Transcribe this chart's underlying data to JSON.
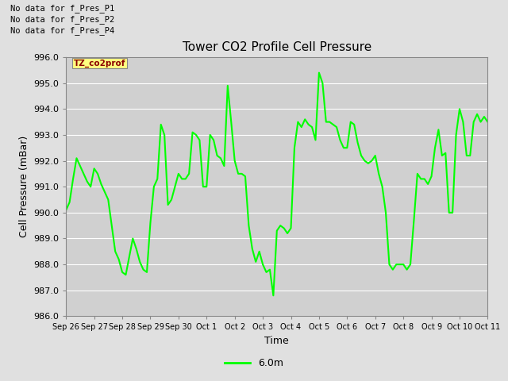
{
  "title": "Tower CO2 Profile Cell Pressure",
  "xlabel": "Time",
  "ylabel": "Cell Pressure (mBar)",
  "ylim": [
    986.0,
    996.0
  ],
  "yticks": [
    986.0,
    987.0,
    988.0,
    989.0,
    990.0,
    991.0,
    992.0,
    993.0,
    994.0,
    995.0,
    996.0
  ],
  "line_color": "#00FF00",
  "line_width": 1.5,
  "bg_color": "#E0E0E0",
  "plot_bg_color": "#D0D0D0",
  "legend_label": "6.0m",
  "annotations": [
    "No data for f_Pres_P1",
    "No data for f_Pres_P2",
    "No data for f_Pres_P4"
  ],
  "inset_label": "TZ_co2prof",
  "x_tick_labels": [
    "Sep 26",
    "Sep 27",
    "Sep 28",
    "Sep 29",
    "Sep 30",
    "Oct 1",
    "Oct 2",
    "Oct 3",
    "Oct 4",
    "Oct 5",
    "Oct 6",
    "Oct 7",
    "Oct 8",
    "Oct 9",
    "Oct 10",
    "Oct 11"
  ],
  "data_x": [
    0,
    0.5,
    1,
    1.5,
    2,
    2.5,
    3,
    3.5,
    4,
    4.5,
    5,
    5.5,
    6,
    6.5,
    7,
    7.5,
    8,
    8.5,
    9,
    9.5,
    10,
    10.5,
    11,
    11.5,
    12,
    12.5,
    13,
    13.5,
    14,
    14.5,
    15,
    15.5,
    16,
    16.5,
    17,
    17.5,
    18,
    18.5,
    19,
    19.5,
    20,
    20.5,
    21,
    21.5,
    22,
    22.5,
    23,
    23.5,
    24,
    24.5,
    25,
    25.5,
    26,
    26.5,
    27,
    27.5,
    28,
    28.5,
    29,
    29.5,
    30,
    30.5,
    31,
    31.5,
    32,
    32.5,
    33,
    33.5,
    34,
    34.5,
    35,
    35.5,
    36,
    36.5,
    37,
    37.5,
    38,
    38.5,
    39,
    39.5,
    40,
    40.5,
    41,
    41.5,
    42,
    42.5,
    43,
    43.5,
    44,
    44.5,
    45,
    45.5,
    46,
    46.5,
    47,
    47.5,
    48,
    48.5,
    49,
    49.5,
    50,
    50.5,
    51,
    51.5,
    52,
    52.5,
    53,
    53.5,
    54,
    54.5,
    55,
    55.5,
    56,
    56.5,
    57,
    57.5,
    58,
    58.5,
    59,
    59.5,
    60
  ],
  "data_y": [
    990.1,
    990.4,
    991.3,
    992.1,
    991.8,
    991.5,
    991.2,
    991.0,
    991.7,
    991.5,
    991.1,
    990.8,
    990.5,
    989.5,
    988.5,
    988.2,
    987.7,
    987.6,
    988.3,
    989.0,
    988.6,
    988.1,
    987.8,
    987.7,
    989.6,
    991.0,
    991.3,
    993.4,
    993.0,
    990.3,
    990.5,
    991.0,
    991.5,
    991.3,
    991.3,
    991.5,
    993.1,
    993.0,
    992.8,
    991.0,
    991.0,
    993.0,
    992.8,
    992.2,
    992.1,
    991.8,
    994.9,
    993.5,
    992.0,
    991.5,
    991.5,
    991.4,
    989.5,
    988.6,
    988.1,
    988.5,
    988.0,
    987.7,
    987.8,
    986.8,
    989.3,
    989.5,
    989.4,
    989.2,
    989.4,
    992.5,
    993.5,
    993.3,
    993.6,
    993.4,
    993.3,
    992.8,
    995.4,
    995.0,
    993.5,
    993.5,
    993.4,
    993.3,
    992.8,
    992.5,
    992.5,
    993.5,
    993.4,
    992.7,
    992.2,
    992.0,
    991.9,
    992.0,
    992.2,
    991.5,
    991.0,
    990.0,
    988.0,
    987.8,
    988.0,
    988.0,
    988.0,
    987.8,
    988.0,
    989.7,
    991.5,
    991.3,
    991.3,
    991.1,
    991.4,
    992.5,
    993.2,
    992.2,
    992.3,
    990.0,
    990.0,
    993.0,
    994.0,
    993.5,
    992.2,
    992.2,
    993.5,
    993.8,
    993.5,
    993.7,
    993.5
  ]
}
